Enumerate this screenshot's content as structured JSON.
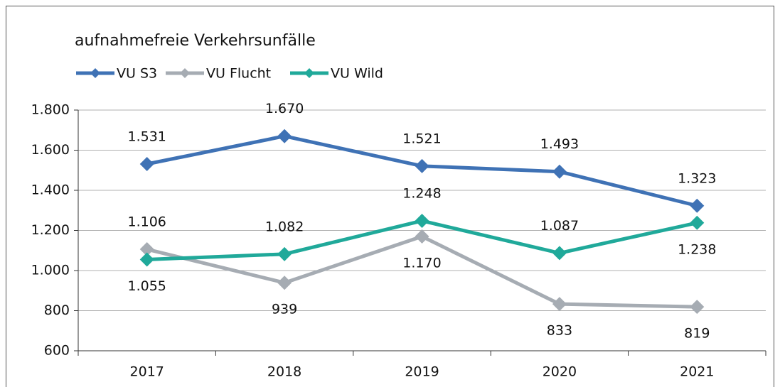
{
  "chart_data": {
    "type": "line",
    "title": "aufnahmefreie Verkehrsunfälle",
    "categories": [
      "2017",
      "2018",
      "2019",
      "2020",
      "2021"
    ],
    "series": [
      {
        "name": "VU S3",
        "color": "#3f72b5",
        "values": [
          1531,
          1670,
          1521,
          1493,
          1323
        ],
        "value_labels": [
          "1.531",
          "1.670",
          "1.521",
          "1.493",
          "1.323"
        ]
      },
      {
        "name": "VU Flucht",
        "color": "#a6acb3",
        "values": [
          1106,
          939,
          1170,
          833,
          819
        ],
        "value_labels": [
          "1.106",
          "939",
          "1.170",
          "833",
          "819"
        ]
      },
      {
        "name": "VU Wild",
        "color": "#20a99a",
        "values": [
          1055,
          1082,
          1248,
          1087,
          1238
        ],
        "value_labels": [
          "1.055",
          "1.082",
          "1.248",
          "1.087",
          "1.238"
        ]
      }
    ],
    "ylim": [
      600,
      1800
    ],
    "yticks": [
      {
        "value": 600,
        "label": "600"
      },
      {
        "value": 800,
        "label": "800"
      },
      {
        "value": 1000,
        "label": "1.000"
      },
      {
        "value": 1200,
        "label": "1.200"
      },
      {
        "value": 1400,
        "label": "1.400"
      },
      {
        "value": 1600,
        "label": "1.600"
      },
      {
        "value": 1800,
        "label": "1.800"
      }
    ],
    "grid": true,
    "legend": "top-left"
  }
}
